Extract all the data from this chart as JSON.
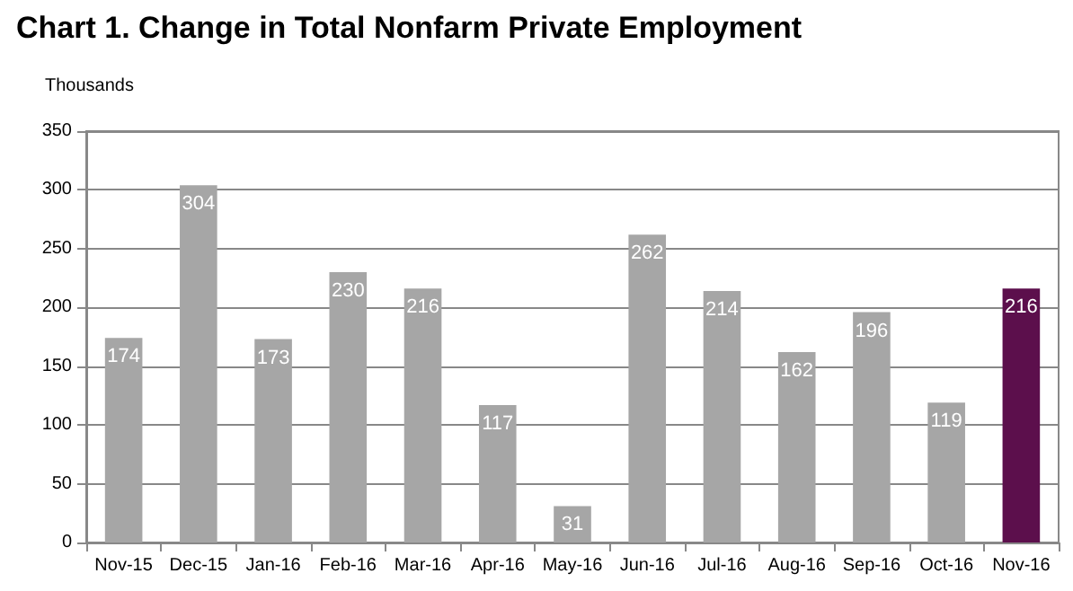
{
  "chart_data": {
    "type": "bar",
    "title": "Chart 1. Change in Total Nonfarm Private Employment",
    "ylabel": "Thousands",
    "categories": [
      "Nov-15",
      "Dec-15",
      "Jan-16",
      "Feb-16",
      "Mar-16",
      "Apr-16",
      "May-16",
      "Jun-16",
      "Jul-16",
      "Aug-16",
      "Sep-16",
      "Oct-16",
      "Nov-16"
    ],
    "values": [
      174,
      304,
      173,
      230,
      216,
      117,
      31,
      262,
      214,
      162,
      196,
      119,
      216
    ],
    "colors": [
      "#a6a6a6",
      "#a6a6a6",
      "#a6a6a6",
      "#a6a6a6",
      "#a6a6a6",
      "#a6a6a6",
      "#a6a6a6",
      "#a6a6a6",
      "#a6a6a6",
      "#a6a6a6",
      "#a6a6a6",
      "#a6a6a6",
      "#5c0f4c"
    ],
    "ylim": [
      0,
      350
    ],
    "yticks": [
      0,
      50,
      100,
      150,
      200,
      250,
      300,
      350
    ],
    "grid": true,
    "data_labels": true
  }
}
